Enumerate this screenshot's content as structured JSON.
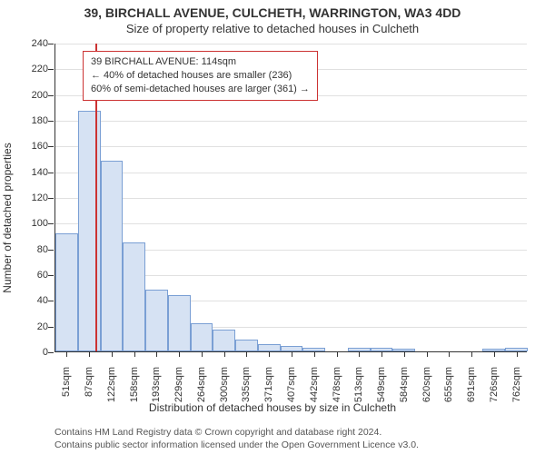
{
  "title_line1": "39, BIRCHALL AVENUE, CULCHETH, WARRINGTON, WA3 4DD",
  "title_line2": "Size of property relative to detached houses in Culcheth",
  "ylabel": "Number of detached properties",
  "xlabel": "Distribution of detached houses by size in Culcheth",
  "footnote1": "Contains HM Land Registry data © Crown copyright and database right 2024.",
  "footnote2": "Contains public sector information licensed under the Open Government Licence v3.0.",
  "chart": {
    "type": "histogram",
    "background_color": "#ffffff",
    "grid_color": "#e0e0e0",
    "axis_color": "#333333",
    "bar_fill_color": "#d6e2f3",
    "bar_border_color": "#7a9fd4",
    "marker_color": "#cc3333",
    "marker_width": 2,
    "annotation_border_color": "#cc3333",
    "ylim": [
      0,
      240
    ],
    "ytick_step": 20,
    "label_fontsize": 12,
    "tick_fontsize": 11,
    "title_fontsize": 14,
    "bar_width_ratio": 1.0,
    "xtick_labels": [
      "51sqm",
      "87sqm",
      "122sqm",
      "158sqm",
      "193sqm",
      "229sqm",
      "264sqm",
      "300sqm",
      "335sqm",
      "371sqm",
      "407sqm",
      "442sqm",
      "478sqm",
      "513sqm",
      "549sqm",
      "584sqm",
      "620sqm",
      "655sqm",
      "691sqm",
      "726sqm",
      "762sqm"
    ],
    "values": [
      92,
      187,
      148,
      85,
      48,
      44,
      22,
      17,
      9,
      6,
      4,
      3,
      0,
      3,
      3,
      2,
      0,
      0,
      0,
      2,
      3
    ],
    "marker_value": 114,
    "x_range": [
      51,
      797
    ]
  },
  "annotation": {
    "line1": "39 BIRCHALL AVENUE: 114sqm",
    "line2": "← 40% of detached houses are smaller (236)",
    "line3": "60% of semi-detached houses are larger (361) →"
  }
}
